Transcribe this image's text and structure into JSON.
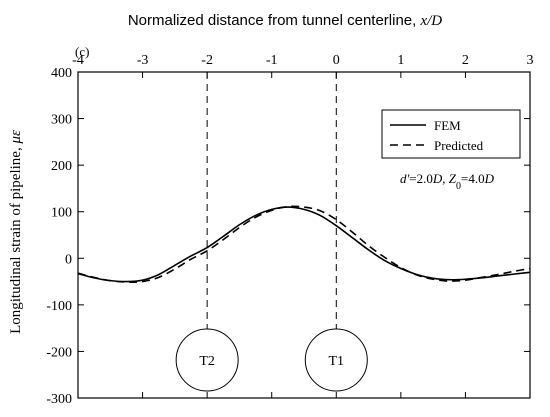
{
  "chart_data": {
    "type": "line",
    "panel_label": "(c)",
    "top_xlabel": "Normalized distance from tunnel centerline, ",
    "top_xlabel_var": "x/D",
    "ylabel": "Longitudinal strain of pipeline, ",
    "ylabel_var": "με",
    "xlim": [
      -4,
      3
    ],
    "ylim": [
      -300,
      400
    ],
    "xticks": [
      -4,
      -3,
      -2,
      -1,
      0,
      1,
      2,
      3
    ],
    "xtick_labels": [
      "-4",
      "-3",
      "-2",
      "-1",
      "0",
      "1",
      "2",
      "3"
    ],
    "yticks": [
      -300,
      -200,
      -100,
      0,
      100,
      200,
      300,
      400
    ],
    "ytick_labels": [
      "-300",
      "-200",
      "-100",
      "0",
      "100",
      "200",
      "300",
      "400"
    ],
    "legend": {
      "placement": "top-right",
      "entries": [
        "FEM",
        "Predicted"
      ]
    },
    "annotation": {
      "text_parts": [
        {
          "t": "d'",
          "italic": true
        },
        {
          "t": "=2.0",
          "italic": false
        },
        {
          "t": "D",
          "italic": true
        },
        {
          "t": ", ",
          "italic": false
        },
        {
          "t": "Z",
          "italic": true
        },
        {
          "t": "0",
          "italic": false,
          "sub": true
        },
        {
          "t": "=4.0",
          "italic": false
        },
        {
          "t": "D",
          "italic": true
        }
      ]
    },
    "tunnels": [
      {
        "label": "T2",
        "x": -2.0
      },
      {
        "label": "T1",
        "x": 0.0
      }
    ],
    "series": [
      {
        "name": "FEM",
        "style": "solid",
        "x": [
          -4.0,
          -3.75,
          -3.5,
          -3.25,
          -3.0,
          -2.75,
          -2.5,
          -2.25,
          -2.0,
          -1.75,
          -1.5,
          -1.25,
          -1.0,
          -0.75,
          -0.5,
          -0.25,
          0.0,
          0.25,
          0.5,
          0.75,
          1.0,
          1.25,
          1.5,
          1.75,
          2.0,
          2.25,
          2.5,
          2.75,
          3.0
        ],
        "y": [
          -33,
          -42,
          -48,
          -50,
          -47,
          -35,
          -15,
          5,
          23,
          47,
          72,
          92,
          105,
          110,
          105,
          92,
          70,
          44,
          18,
          -5,
          -22,
          -35,
          -43,
          -46,
          -45,
          -42,
          -38,
          -34,
          -30
        ]
      },
      {
        "name": "Predicted",
        "style": "dashed",
        "x": [
          -4.0,
          -3.75,
          -3.5,
          -3.25,
          -3.0,
          -2.75,
          -2.5,
          -2.25,
          -2.0,
          -1.75,
          -1.5,
          -1.25,
          -1.0,
          -0.75,
          -0.5,
          -0.25,
          0.0,
          0.25,
          0.5,
          0.75,
          1.0,
          1.25,
          1.5,
          1.75,
          2.0,
          2.25,
          2.5,
          2.75,
          3.0
        ],
        "y": [
          -32,
          -41,
          -48,
          -51,
          -50,
          -41,
          -23,
          -2,
          16,
          40,
          66,
          88,
          103,
          111,
          110,
          102,
          83,
          56,
          27,
          2,
          -20,
          -36,
          -45,
          -49,
          -47,
          -41,
          -35,
          -28,
          -22
        ]
      }
    ]
  }
}
